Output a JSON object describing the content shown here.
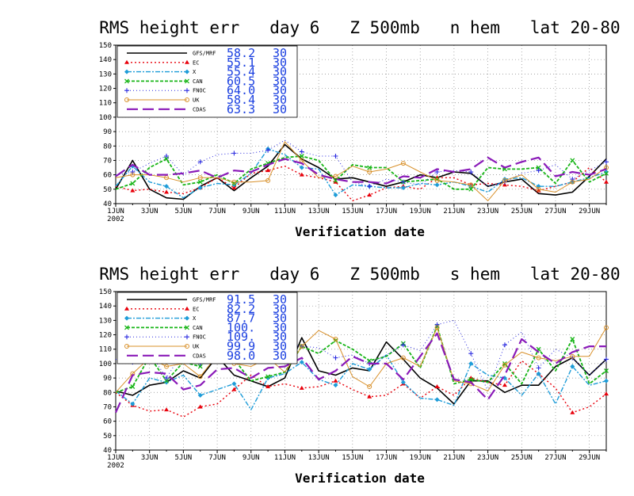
{
  "colors": {
    "GFS/MRF": "#000000",
    "EC": "#e8000b",
    "X": "#1e9cd8",
    "CAN": "#17b517",
    "FNOC": "#2a2ae0",
    "UK": "#d8902a",
    "CDAS": "#8a1ab8",
    "value_text": "#1a3fe0",
    "grid": "#888888"
  },
  "chart_data": [
    {
      "type": "line",
      "title": "RMS height err   day 6   Z 500mb   n hem   lat 20-80",
      "xlabel": "Verification date",
      "ylabel": "",
      "ylim": [
        40,
        150
      ],
      "yticks": [
        40,
        50,
        60,
        70,
        80,
        90,
        100,
        110,
        120,
        130,
        140,
        150
      ],
      "x_tick_labels": [
        "1JUN\n2002",
        "3JUN",
        "5JUN",
        "7JUN",
        "9JUN",
        "11JUN",
        "13JUN",
        "15JUN",
        "17JUN",
        "19JUN",
        "21JUN",
        "23JUN",
        "25JUN",
        "27JUN",
        "29JUN"
      ],
      "x": [
        "1JUN",
        "2JUN",
        "3JUN",
        "4JUN",
        "5JUN",
        "6JUN",
        "7JUN",
        "8JUN",
        "9JUN",
        "10JUN",
        "11JUN",
        "12JUN",
        "13JUN",
        "14JUN",
        "15JUN",
        "16JUN",
        "17JUN",
        "18JUN",
        "19JUN",
        "20JUN",
        "21JUN",
        "22JUN",
        "23JUN",
        "24JUN",
        "25JUN",
        "26JUN",
        "27JUN",
        "28JUN",
        "29JUN",
        "30JUN"
      ],
      "grid": true,
      "legend_position": "top-left",
      "series": [
        {
          "name": "GFS/MRF",
          "mean": "58.2",
          "count": "30",
          "marker": "",
          "values": [
            50,
            70,
            50,
            44,
            43,
            52,
            58,
            49,
            58,
            66,
            81,
            71,
            65,
            57,
            58,
            55,
            52,
            55,
            60,
            58,
            62,
            61,
            52,
            55,
            57,
            47,
            46,
            48,
            59,
            71
          ]
        },
        {
          "name": "EC",
          "mean": "55.1",
          "count": "30",
          "marker": "▲",
          "values": [
            52,
            49,
            50,
            48,
            47,
            51,
            58,
            51,
            61,
            63,
            66,
            60,
            58,
            55,
            42,
            46,
            51,
            52,
            50,
            58,
            58,
            53,
            54,
            53,
            52,
            49,
            52,
            55,
            65,
            55
          ]
        },
        {
          "name": "X",
          "mean": "55.4",
          "count": "30",
          "marker": "◆",
          "values": [
            52,
            66,
            55,
            52,
            44,
            51,
            54,
            53,
            61,
            78,
            74,
            65,
            64,
            46,
            53,
            52,
            51,
            51,
            54,
            53,
            55,
            52,
            48,
            57,
            58,
            52,
            52,
            55,
            58,
            62
          ]
        },
        {
          "name": "CAN",
          "mean": "60.5",
          "count": "30",
          "marker": "✕",
          "values": [
            50,
            54,
            65,
            71,
            53,
            55,
            60,
            54,
            64,
            68,
            72,
            73,
            70,
            56,
            67,
            65,
            65,
            55,
            56,
            57,
            50,
            50,
            65,
            64,
            64,
            65,
            54,
            70,
            55,
            61
          ]
        },
        {
          "name": "FNOC",
          "mean": "64.0",
          "count": "30",
          "marker": "+",
          "values": [
            60,
            62,
            68,
            73,
            60,
            69,
            74,
            75,
            75,
            77,
            84,
            76,
            73,
            73,
            55,
            52,
            57,
            55,
            53,
            62,
            63,
            62,
            52,
            55,
            61,
            63,
            67,
            57,
            63,
            69
          ]
        },
        {
          "name": "UK",
          "mean": "58.4",
          "count": "30",
          "marker": "○",
          "values": [
            58,
            60,
            60,
            58,
            55,
            58,
            58,
            55,
            55,
            56,
            83,
            70,
            58,
            59,
            66,
            62,
            64,
            68,
            62,
            56,
            55,
            53,
            42,
            56,
            60,
            50,
            48,
            55,
            57,
            65
          ]
        },
        {
          "name": "CDAS",
          "mean": "63.3",
          "count": "30",
          "marker": "",
          "values": [
            59,
            67,
            60,
            60,
            61,
            63,
            58,
            63,
            62,
            67,
            71,
            68,
            60,
            57,
            55,
            55,
            54,
            59,
            58,
            64,
            62,
            64,
            72,
            65,
            69,
            72,
            59,
            62,
            60,
            64
          ]
        }
      ]
    },
    {
      "type": "line",
      "title": "RMS height err   day 6   Z 500mb   s hem   lat 20-80",
      "xlabel": "Verification date",
      "ylabel": "",
      "ylim": [
        40,
        150
      ],
      "yticks": [
        40,
        50,
        60,
        70,
        80,
        90,
        100,
        110,
        120,
        130,
        140,
        150
      ],
      "x_tick_labels": [
        "1JUN\n2002",
        "3JUN",
        "5JUN",
        "7JUN",
        "9JUN",
        "11JUN",
        "13JUN",
        "15JUN",
        "17JUN",
        "19JUN",
        "21JUN",
        "23JUN",
        "25JUN",
        "27JUN",
        "29JUN"
      ],
      "x": [
        "1JUN",
        "2JUN",
        "3JUN",
        "4JUN",
        "5JUN",
        "6JUN",
        "7JUN",
        "8JUN",
        "9JUN",
        "10JUN",
        "11JUN",
        "12JUN",
        "13JUN",
        "14JUN",
        "15JUN",
        "16JUN",
        "17JUN",
        "18JUN",
        "19JUN",
        "20JUN",
        "21JUN",
        "22JUN",
        "23JUN",
        "24JUN",
        "25JUN",
        "26JUN",
        "27JUN",
        "28JUN",
        "29JUN",
        "30JUN"
      ],
      "grid": true,
      "legend_position": "top-left",
      "series": [
        {
          "name": "GFS/MRF",
          "mean": "91.5",
          "count": "30",
          "marker": "",
          "values": [
            81,
            78,
            85,
            87,
            95,
            90,
            105,
            92,
            88,
            84,
            90,
            118,
            95,
            92,
            97,
            95,
            115,
            103,
            90,
            83,
            72,
            88,
            88,
            80,
            85,
            85,
            98,
            104,
            92,
            103
          ]
        },
        {
          "name": "EC",
          "mean": "82.2",
          "count": "30",
          "marker": "▲",
          "values": [
            80,
            71,
            67,
            68,
            63,
            70,
            72,
            82,
            92,
            84,
            86,
            83,
            84,
            88,
            82,
            77,
            78,
            86,
            76,
            84,
            78,
            90,
            87,
            85,
            102,
            93,
            83,
            66,
            70,
            79
          ]
        },
        {
          "name": "X",
          "mean": "87.7",
          "count": "30",
          "marker": "◆",
          "values": [
            81,
            72,
            90,
            87,
            92,
            78,
            82,
            86,
            68,
            90,
            93,
            101,
            89,
            85,
            100,
            96,
            106,
            87,
            76,
            75,
            71,
            100,
            92,
            90,
            78,
            93,
            72,
            98,
            85,
            88
          ]
        },
        {
          "name": "CAN",
          "mean": "100.",
          "count": "30",
          "marker": "✕",
          "values": [
            80,
            84,
            105,
            88,
            101,
            98,
            112,
            103,
            88,
            91,
            94,
            112,
            107,
            116,
            110,
            102,
            105,
            114,
            97,
            126,
            86,
            89,
            87,
            100,
            86,
            110,
            95,
            117,
            86,
            95
          ]
        },
        {
          "name": "FNOC",
          "mean": "109.",
          "count": "30",
          "marker": "+",
          "values": [
            103,
            101,
            108,
            90,
            109,
            100,
            127,
            126,
            115,
            122,
            114,
            112,
            111,
            104,
            106,
            100,
            106,
            113,
            109,
            127,
            130,
            107,
            81,
            113,
            122,
            97,
            110,
            104,
            92,
            103
          ]
        },
        {
          "name": "UK",
          "mean": "99.9",
          "count": "30",
          "marker": "○",
          "values": [
            80,
            93,
            104,
            98,
            100,
            91,
            106,
            100,
            98,
            104,
            94,
            112,
            123,
            117,
            91,
            84,
            100,
            104,
            98,
            125,
            88,
            86,
            81,
            99,
            108,
            104,
            102,
            105,
            105,
            125
          ]
        },
        {
          "name": "CDAS",
          "mean": "98.0",
          "count": "30",
          "marker": "",
          "values": [
            66,
            92,
            94,
            93,
            82,
            85,
            96,
            97,
            90,
            97,
            98,
            104,
            89,
            95,
            105,
            100,
            100,
            89,
            105,
            121,
            89,
            87,
            75,
            92,
            117,
            108,
            100,
            108,
            112,
            112
          ]
        }
      ]
    }
  ]
}
